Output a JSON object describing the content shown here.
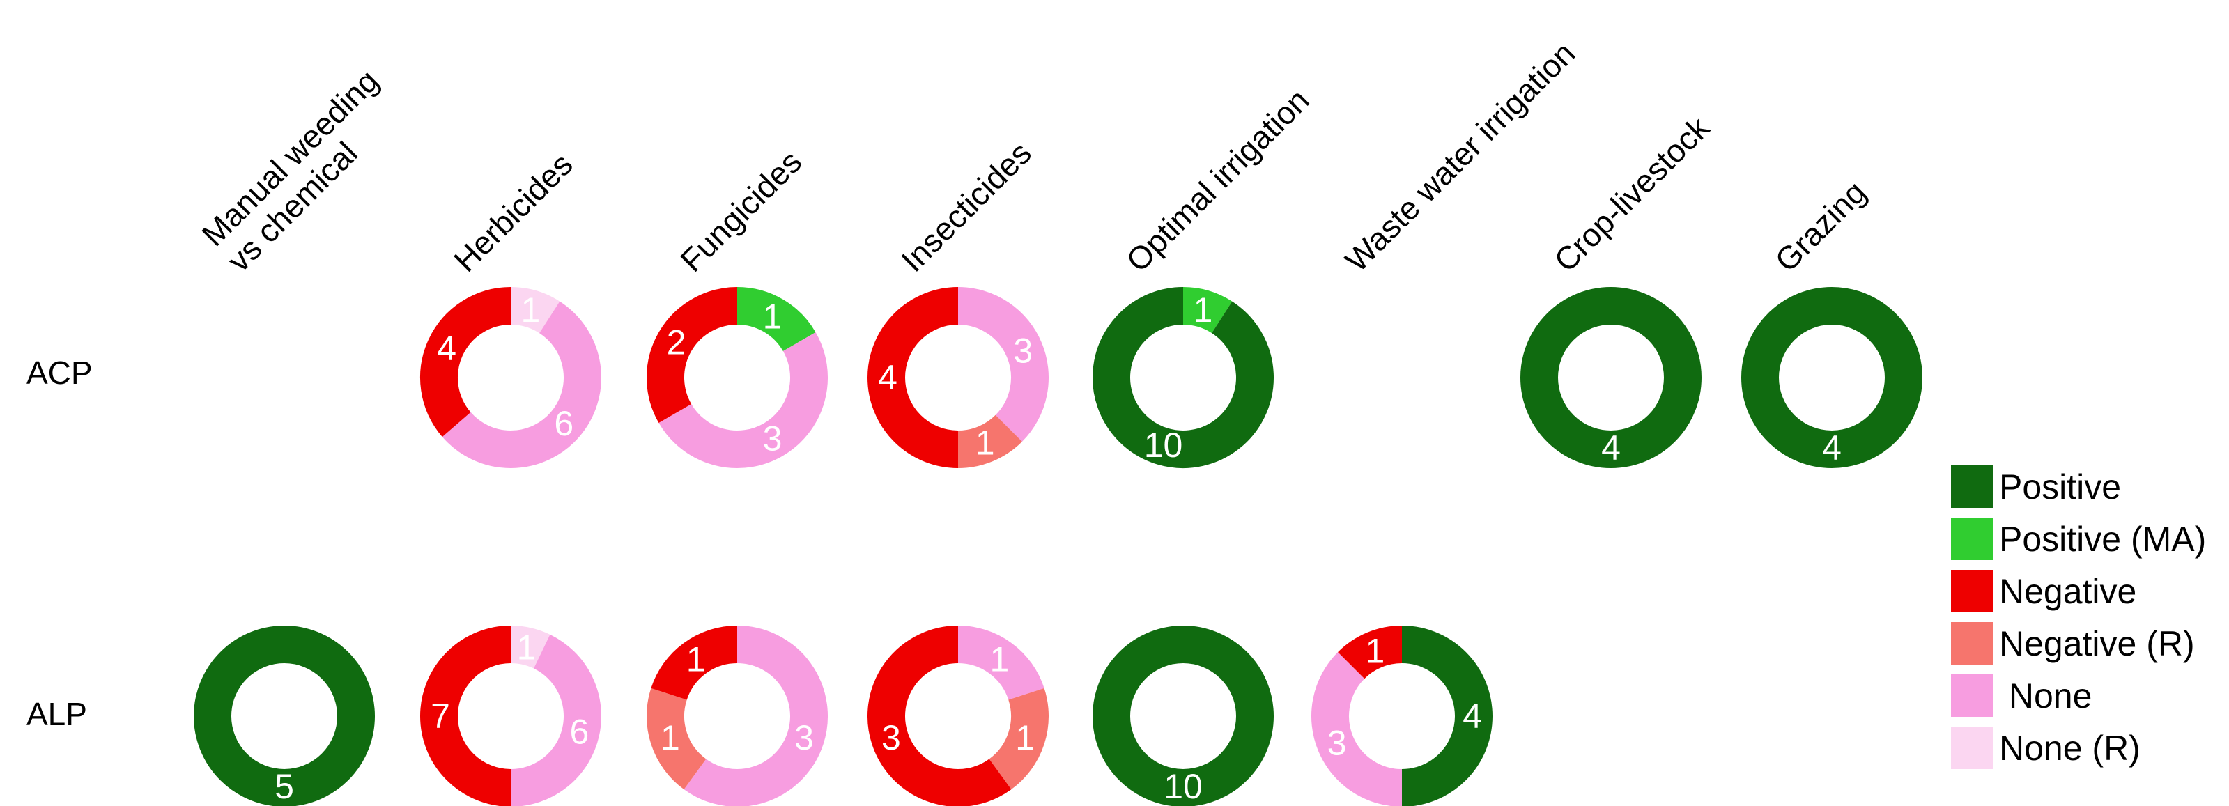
{
  "rows": [
    {
      "label": "ACP"
    },
    {
      "label": "ALP"
    }
  ],
  "chart_data": {
    "type": "donut-grid",
    "title": "",
    "rows": [
      {
        "label": "ACP"
      },
      {
        "label": "ALP"
      }
    ],
    "columns": [
      {
        "label": "Manual weeding\nvs chemical"
      },
      {
        "label": "Herbicides"
      },
      {
        "label": "Fungicides"
      },
      {
        "label": "Insecticides"
      },
      {
        "label": "Optimal irrigation"
      },
      {
        "label": "Waste water irrigation"
      },
      {
        "label": "Crop-livestock"
      },
      {
        "label": "Grazing"
      }
    ],
    "colors": {
      "positive": "#106b10",
      "positive_ma": "#30cd30",
      "negative": "#ee0000",
      "negative_r": "#f6756d",
      "none": "#f79de0",
      "none_r": "#fbd6f1"
    },
    "legend": [
      {
        "key": "positive",
        "label": "Positive"
      },
      {
        "key": "positive_ma",
        "label": "Positive (MA)"
      },
      {
        "key": "negative",
        "label": "Negative"
      },
      {
        "key": "negative_r",
        "label": "Negative (R)"
      },
      {
        "key": "none",
        "label": " None"
      },
      {
        "key": "none_r",
        "label": "None (R)"
      }
    ],
    "donuts": [
      {
        "row": "ACP",
        "column": "Herbicides",
        "segments": [
          {
            "key": "none_r",
            "value": 1
          },
          {
            "key": "none",
            "value": 6
          },
          {
            "key": "negative",
            "value": 4
          }
        ]
      },
      {
        "row": "ACP",
        "column": "Fungicides",
        "segments": [
          {
            "key": "positive_ma",
            "value": 1
          },
          {
            "key": "none",
            "value": 3
          },
          {
            "key": "negative",
            "value": 2
          }
        ]
      },
      {
        "row": "ACP",
        "column": "Insecticides",
        "segments": [
          {
            "key": "none",
            "value": 3
          },
          {
            "key": "negative_r",
            "value": 1
          },
          {
            "key": "negative",
            "value": 4
          }
        ]
      },
      {
        "row": "ACP",
        "column": "Optimal irrigation",
        "segments": [
          {
            "key": "positive_ma",
            "value": 1
          },
          {
            "key": "positive",
            "value": 10
          }
        ]
      },
      {
        "row": "ACP",
        "column": "Crop-livestock",
        "segments": [
          {
            "key": "positive",
            "value": 4
          }
        ]
      },
      {
        "row": "ACP",
        "column": "Grazing",
        "segments": [
          {
            "key": "positive",
            "value": 4
          }
        ]
      },
      {
        "row": "ALP",
        "column": "Manual weeding\nvs chemical",
        "segments": [
          {
            "key": "positive",
            "value": 5
          }
        ]
      },
      {
        "row": "ALP",
        "column": "Herbicides",
        "segments": [
          {
            "key": "none_r",
            "value": 1
          },
          {
            "key": "none",
            "value": 6
          },
          {
            "key": "negative",
            "value": 7
          }
        ]
      },
      {
        "row": "ALP",
        "column": "Fungicides",
        "segments": [
          {
            "key": "none",
            "value": 3
          },
          {
            "key": "negative_r",
            "value": 1
          },
          {
            "key": "negative",
            "value": 1
          }
        ]
      },
      {
        "row": "ALP",
        "column": "Insecticides",
        "segments": [
          {
            "key": "none",
            "value": 1
          },
          {
            "key": "negative_r",
            "value": 1
          },
          {
            "key": "negative",
            "value": 3
          }
        ]
      },
      {
        "row": "ALP",
        "column": "Optimal irrigation",
        "segments": [
          {
            "key": "positive",
            "value": 10
          }
        ]
      },
      {
        "row": "ALP",
        "column": "Waste water irrigation",
        "segments": [
          {
            "key": "positive",
            "value": 4
          },
          {
            "key": "none",
            "value": 3
          },
          {
            "key": "negative",
            "value": 1
          }
        ]
      }
    ]
  }
}
